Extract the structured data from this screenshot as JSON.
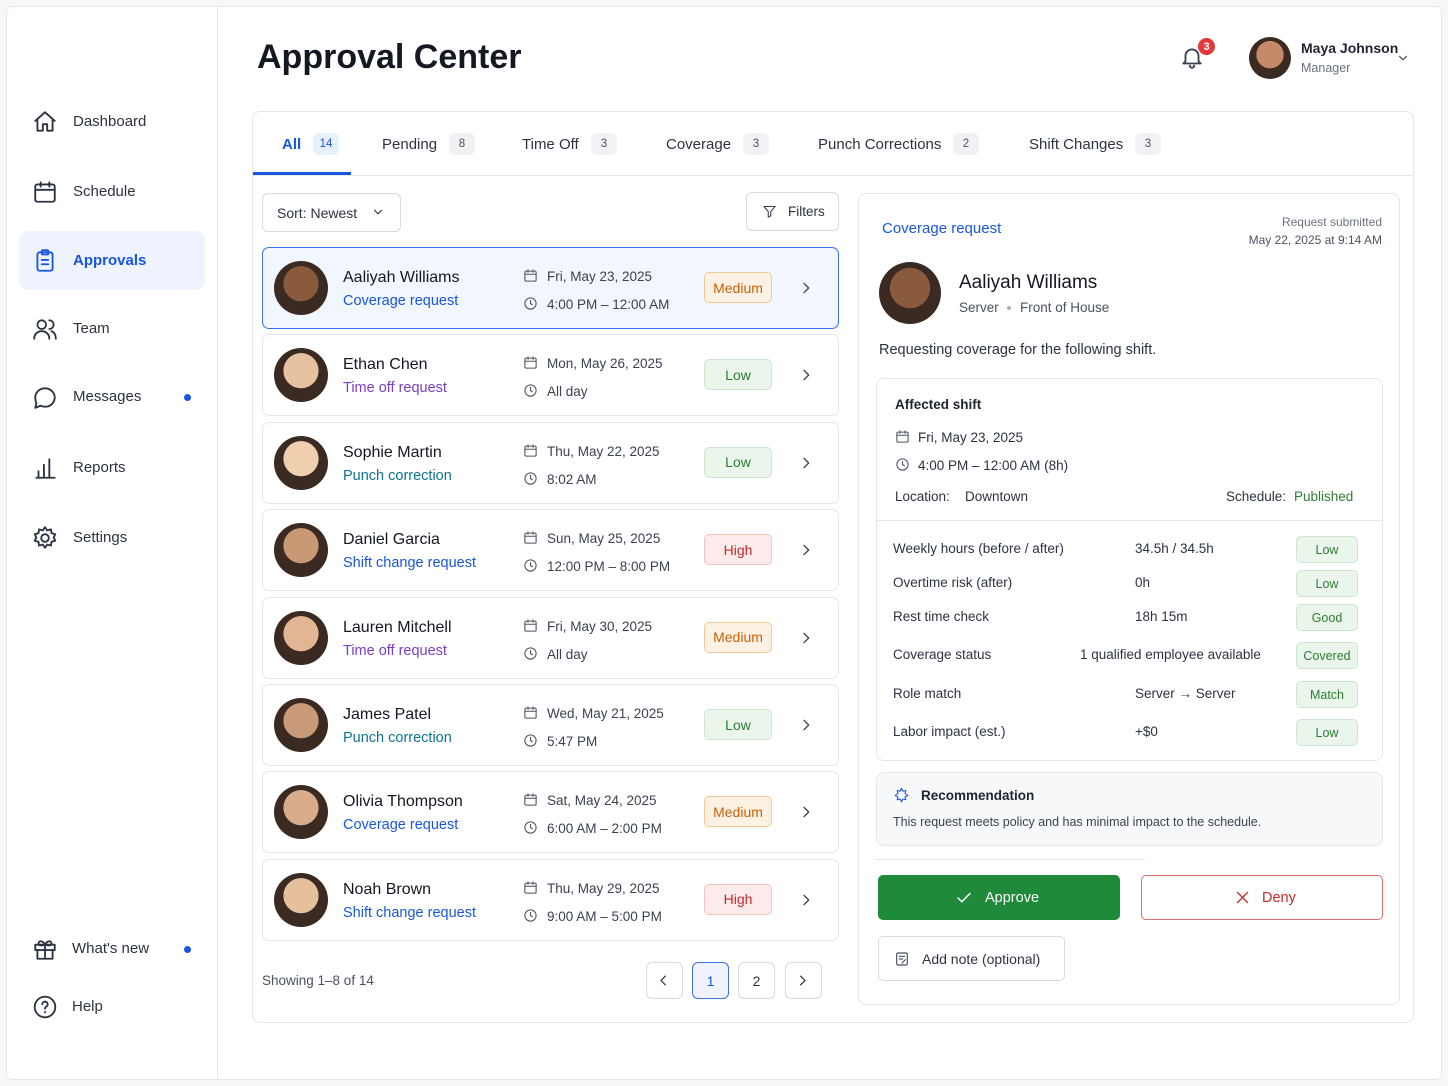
{
  "sidebar": {
    "nav": [
      "Dashboard",
      "Schedule",
      "Approvals",
      "Team",
      "Messages",
      "Reports",
      "Settings"
    ],
    "footer": [
      "What's new",
      "Help"
    ]
  },
  "header": {
    "title": "Approval Center",
    "notifications": 3,
    "user": {
      "name": "Maya Johnson",
      "role": "Manager"
    }
  },
  "tabs": [
    {
      "label": "All",
      "count": 14
    },
    {
      "label": "Pending",
      "count": 8
    },
    {
      "label": "Time Off",
      "count": 3
    },
    {
      "label": "Coverage",
      "count": 3
    },
    {
      "label": "Punch Corrections",
      "count": 2
    },
    {
      "label": "Shift Changes",
      "count": 3
    }
  ],
  "list": {
    "sort": "Sort: Newest",
    "filters": "Filters",
    "items": [
      {
        "name": "Aaliyah Williams",
        "type": "Coverage request",
        "date": "Fri, May 23, 2025",
        "time": "4:00 PM – 12:00 AM",
        "priority": "Medium"
      },
      {
        "name": "Ethan Chen",
        "type": "Time off request",
        "date": "Mon, May 26, 2025",
        "time": "All day",
        "priority": "Low"
      },
      {
        "name": "Sophie Martin",
        "type": "Punch correction",
        "date": "Thu, May 22, 2025",
        "time": "8:02 AM",
        "priority": "Low"
      },
      {
        "name": "Daniel Garcia",
        "type": "Shift change request",
        "date": "Sun, May 25, 2025",
        "time": "12:00 PM – 8:00 PM",
        "priority": "High"
      },
      {
        "name": "Lauren Mitchell",
        "type": "Time off request",
        "date": "Fri, May 30, 2025",
        "time": "All day",
        "priority": "Medium"
      },
      {
        "name": "James Patel",
        "type": "Punch correction",
        "date": "Wed, May 21, 2025",
        "time": "5:47 PM",
        "priority": "Low"
      },
      {
        "name": "Olivia Thompson",
        "type": "Coverage request",
        "date": "Sat, May 24, 2025",
        "time": "6:00 AM – 2:00 PM",
        "priority": "Medium"
      },
      {
        "name": "Noah Brown",
        "type": "Shift change request",
        "date": "Thu, May 29, 2025",
        "time": "9:00 AM – 5:00 PM",
        "priority": "High"
      }
    ],
    "showing": "Showing 1–8 of 14",
    "pages": [
      1,
      2
    ]
  },
  "detail": {
    "type": "Coverage request",
    "submitted_label": "Request submitted",
    "submitted_at": "May 22, 2025 at 9:14 AM",
    "name": "Aaliyah Williams",
    "role": "Server",
    "department": "Front of House",
    "intro": "Requesting coverage for the following shift.",
    "shift": {
      "title": "Affected shift",
      "date": "Fri, May 23, 2025",
      "time": "4:00 PM – 12:00 AM (8h)",
      "location_label": "Location:",
      "location": "Downtown",
      "schedule_label": "Schedule:",
      "schedule": "Published"
    },
    "checks": [
      {
        "label": "Weekly hours (before / after)",
        "value": "34.5h / 34.5h",
        "status": "Low"
      },
      {
        "label": "Overtime risk (after)",
        "value": "0h",
        "status": "Low"
      },
      {
        "label": "Rest time check",
        "value": "18h 15m",
        "status": "Good"
      },
      {
        "label": "Coverage status",
        "value": "1 qualified employee available",
        "status": "Covered"
      },
      {
        "label": "Role match",
        "value": "Server → Server",
        "status": "Match"
      },
      {
        "label": "Labor impact (est.)",
        "value": "+$0",
        "status": "Low"
      }
    ],
    "recommendation": {
      "title": "Recommendation",
      "text": "This request meets policy and has minimal impact to the schedule."
    },
    "actions": {
      "approve": "Approve",
      "deny": "Deny",
      "note": "Add note (optional)"
    }
  }
}
